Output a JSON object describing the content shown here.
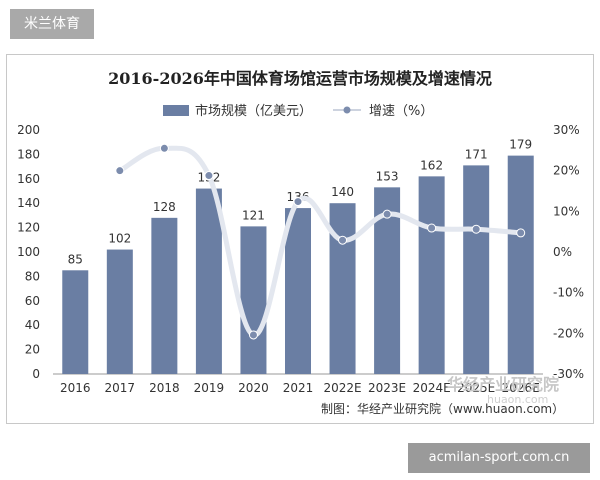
{
  "site_tag": "米兰体育",
  "site_banner": "acmilan-sport.com.cn",
  "source": "制图：华经产业研究院（www.huaon.com）",
  "watermark": {
    "cn": "华经产业研究院",
    "en": "huaon.com"
  },
  "colors": {
    "bar": "#6a7ea3",
    "line": "#e3e7ef",
    "marker": "#7c8cad"
  },
  "chart_data": {
    "type": "bar",
    "title": "2016-2026年中国体育场馆运营市场规模及增速情况",
    "categories": [
      "2016",
      "2017",
      "2018",
      "2019",
      "2020",
      "2021",
      "2022E",
      "2023E",
      "2024E",
      "2025E",
      "2026E"
    ],
    "series": [
      {
        "name": "市场规模（亿美元）",
        "type": "bar",
        "axis": "left",
        "values": [
          85,
          102,
          128,
          152,
          121,
          136,
          140,
          153,
          162,
          171,
          179
        ],
        "labels": [
          "85",
          "102",
          "128",
          "152",
          "121",
          "136",
          "140",
          "153",
          "162",
          "171",
          "179"
        ]
      },
      {
        "name": "增速（%）",
        "type": "line",
        "axis": "right",
        "values": [
          null,
          20,
          25.5,
          18.8,
          -20.4,
          12.4,
          2.9,
          9.3,
          5.9,
          5.6,
          4.7
        ]
      }
    ],
    "y_left": {
      "range": [
        0,
        200
      ],
      "ticks": [
        "0",
        "20",
        "40",
        "60",
        "80",
        "100",
        "120",
        "140",
        "160",
        "180",
        "200"
      ]
    },
    "y_right": {
      "range": [
        -30,
        30
      ],
      "ticks": [
        "-30%",
        "-20%",
        "-10%",
        "0%",
        "10%",
        "20%",
        "30%"
      ]
    },
    "grid": false,
    "legend": "top-center"
  }
}
